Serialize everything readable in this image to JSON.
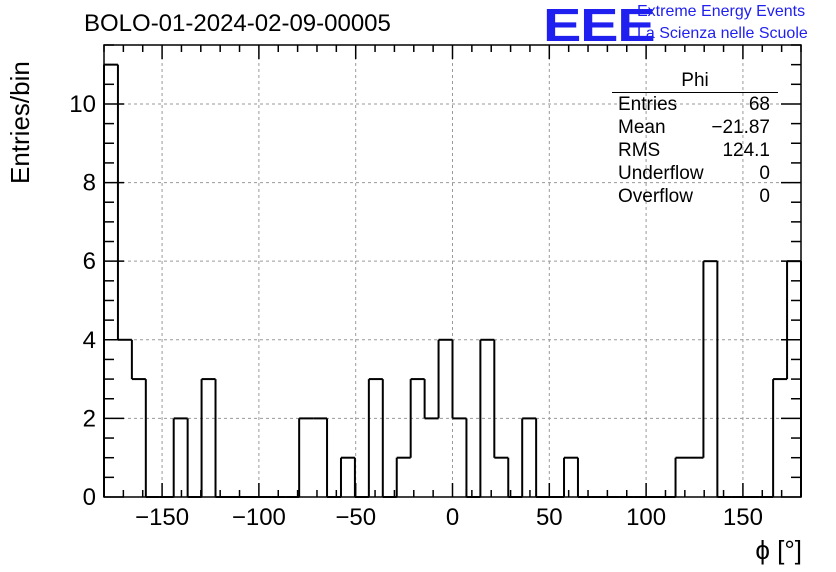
{
  "header": {
    "title": "BOLO-01-2024-02-09-00005",
    "logo_text": "EEE",
    "logo_line1": "Extreme Energy Events",
    "logo_line2": "La Scienza nelle Scuole"
  },
  "stats_box": {
    "title": "Phi",
    "rows": [
      {
        "label": "Entries",
        "value": "68"
      },
      {
        "label": "Mean",
        "value": "−21.87"
      },
      {
        "label": "RMS",
        "value": "124.1"
      },
      {
        "label": "Underflow",
        "value": "0"
      },
      {
        "label": "Overflow",
        "value": "0"
      }
    ]
  },
  "colors": {
    "logo": "#1f1ff0",
    "line": "#000000",
    "grid": "#9a9a9a"
  },
  "chart_data": {
    "type": "histogram",
    "xlabel": "ϕ [°]",
    "ylabel": "Entries/bin",
    "xlim": [
      -180,
      180
    ],
    "ylim": [
      0,
      11.5
    ],
    "bin_width": 7.2,
    "bin_lefts": [
      -180,
      -172.8,
      -165.6,
      -158.4,
      -151.2,
      -144,
      -136.8,
      -129.6,
      -122.4,
      -115.2,
      -108,
      -100.8,
      -93.6,
      -86.4,
      -79.2,
      -72,
      -64.8,
      -57.6,
      -50.4,
      -43.2,
      -36,
      -28.8,
      -21.6,
      -14.4,
      -7.2,
      0,
      7.2,
      14.4,
      21.6,
      28.8,
      36,
      43.2,
      50.4,
      57.6,
      64.8,
      72,
      79.2,
      86.4,
      93.6,
      100.8,
      108,
      115.2,
      122.4,
      129.6,
      136.8,
      144,
      151.2,
      158.4,
      165.6,
      172.8
    ],
    "counts": [
      11,
      4,
      3,
      0,
      0,
      2,
      0,
      3,
      0,
      0,
      0,
      0,
      0,
      0,
      2,
      2,
      0,
      1,
      0,
      3,
      0,
      1,
      3,
      2,
      4,
      2,
      0,
      4,
      1,
      0,
      2,
      0,
      0,
      1,
      0,
      0,
      0,
      0,
      0,
      0,
      0,
      1,
      1,
      6,
      0,
      0,
      0,
      0,
      3,
      6
    ],
    "x_ticks": [
      -150,
      -100,
      -50,
      0,
      50,
      100,
      150
    ],
    "x_tick_labels": [
      "−150",
      "−100",
      "−50",
      "0",
      "50",
      "100",
      "150"
    ],
    "y_ticks": [
      0,
      2,
      4,
      6,
      8,
      10
    ],
    "y_tick_labels": [
      "0",
      "2",
      "4",
      "6",
      "8",
      "10"
    ],
    "grid": true,
    "legend": "top-right stats box"
  }
}
